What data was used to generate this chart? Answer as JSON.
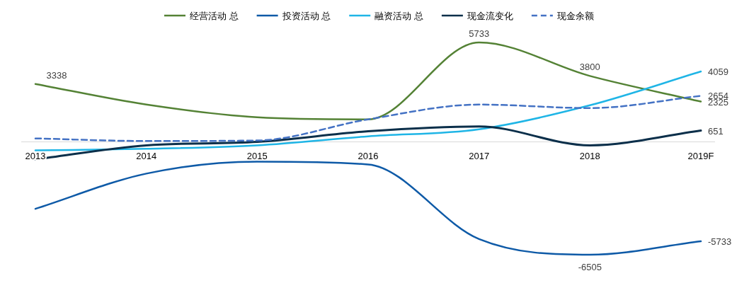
{
  "chart_data": {
    "type": "line",
    "categories": [
      "2013",
      "2014",
      "2015",
      "2016",
      "2017",
      "2018",
      "2019F"
    ],
    "legend": "top",
    "series": [
      {
        "name": "经营活动 总",
        "color": "#548235",
        "values": [
          3338,
          2150,
          1420,
          1300,
          5733,
          3800,
          2325
        ],
        "value_labels": [
          "3338",
          null,
          null,
          null,
          "5733",
          "3800",
          "2325"
        ]
      },
      {
        "name": "投资活动 总",
        "color": "#0e5aa7",
        "values": [
          -3860,
          -1830,
          -1140,
          -1300,
          -5600,
          -6505,
          -5733
        ],
        "value_labels": [
          null,
          null,
          null,
          null,
          null,
          "-6505",
          "-5733"
        ]
      },
      {
        "name": "融资活动 总",
        "color": "#1fb5e6",
        "values": [
          -490,
          -400,
          -200,
          320,
          730,
          2110,
          4059
        ],
        "value_labels": [
          null,
          null,
          null,
          null,
          null,
          null,
          "4059"
        ]
      },
      {
        "name": "现金流变化",
        "color": "#0b2f4a",
        "values": [
          -1010,
          -200,
          0,
          610,
          890,
          -200,
          651
        ],
        "value_labels": [
          null,
          null,
          null,
          null,
          null,
          null,
          "651"
        ]
      },
      {
        "name": "现金余额",
        "color": "#4472c4",
        "line_style": "dashed",
        "values": [
          200,
          50,
          80,
          1300,
          2150,
          1950,
          2654
        ],
        "value_labels": [
          null,
          null,
          null,
          null,
          null,
          null,
          "2654"
        ]
      }
    ]
  }
}
